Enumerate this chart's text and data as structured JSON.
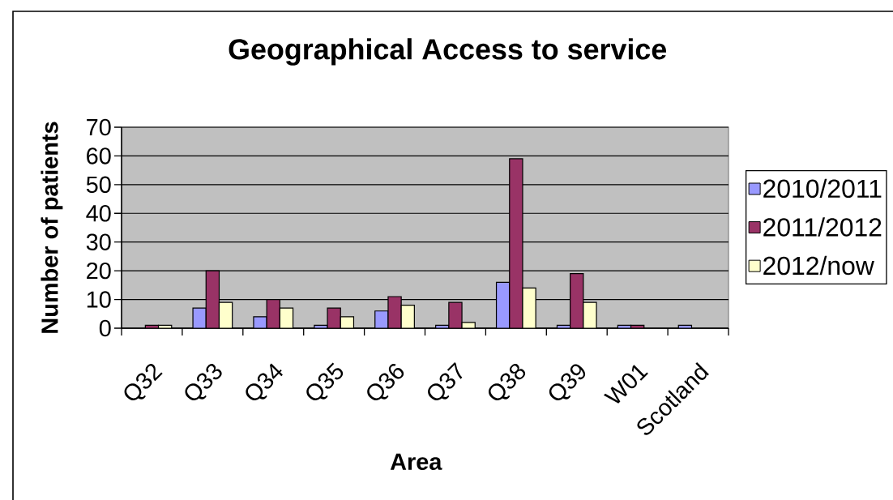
{
  "chart_data": {
    "type": "bar",
    "title": "Geographical Access to service",
    "xlabel": "Area",
    "ylabel": "Number of patients",
    "categories": [
      "Q32",
      "Q33",
      "Q34",
      "Q35",
      "Q36",
      "Q37",
      "Q38",
      "Q39",
      "W01",
      "Scotland"
    ],
    "series": [
      {
        "name": "2010/2011",
        "color": "#9999ff",
        "values": [
          null,
          7,
          4,
          1,
          6,
          1,
          16,
          1,
          1,
          1
        ]
      },
      {
        "name": "2011/2012",
        "color": "#993366",
        "values": [
          1,
          20,
          10,
          7,
          11,
          9,
          59,
          19,
          1,
          null
        ]
      },
      {
        "name": "2012/now",
        "color": "#ffffcc",
        "values": [
          1,
          9,
          7,
          4,
          8,
          2,
          14,
          9,
          null,
          null
        ]
      }
    ],
    "ylim": [
      0,
      70
    ],
    "yticks": [
      0,
      10,
      20,
      30,
      40,
      50,
      60,
      70
    ],
    "grid": "y",
    "legend": "right"
  }
}
